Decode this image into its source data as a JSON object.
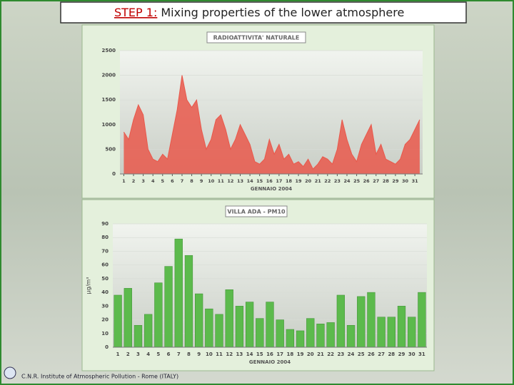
{
  "title_step": "STEP 1:",
  "title": "Mixing properties of the lower atmosphere",
  "footer": "C.N.R. Institute of Atmospheric Pollution - Rome (ITALY)",
  "chart_data": [
    {
      "type": "area",
      "title": "RADIOATTIVITA' NATURALE",
      "x_label": "GENNAIO 2004",
      "color": "#e9584b",
      "x": [
        1,
        1.5,
        2,
        2.5,
        3,
        3.5,
        4,
        4.5,
        5,
        5.5,
        6,
        6.5,
        7,
        7.5,
        8,
        8.5,
        9,
        9.5,
        10,
        10.5,
        11,
        11.5,
        12,
        12.5,
        13,
        13.5,
        14,
        14.5,
        15,
        15.5,
        16,
        16.5,
        17,
        17.5,
        18,
        18.5,
        19,
        19.5,
        20,
        20.5,
        21,
        21.5,
        22,
        22.5,
        23,
        23.5,
        24,
        24.5,
        25,
        25.5,
        26,
        26.5,
        27,
        27.5,
        28,
        28.5,
        29,
        29.5,
        30,
        30.5,
        31,
        31.5
      ],
      "values": [
        850,
        700,
        1100,
        1400,
        1200,
        500,
        300,
        250,
        400,
        300,
        800,
        1300,
        2000,
        1500,
        1350,
        1500,
        900,
        500,
        700,
        1100,
        1200,
        900,
        500,
        700,
        1000,
        800,
        600,
        250,
        200,
        300,
        700,
        400,
        600,
        300,
        400,
        200,
        250,
        150,
        300,
        100,
        200,
        350,
        300,
        200,
        500,
        1100,
        700,
        400,
        250,
        600,
        800,
        1000,
        400,
        600,
        300,
        250,
        200,
        300,
        600,
        700,
        900,
        1100
      ],
      "xlim": [
        0.6,
        31.8
      ],
      "xticks": [
        1,
        2,
        3,
        4,
        5,
        6,
        7,
        8,
        9,
        10,
        11,
        12,
        13,
        14,
        15,
        16,
        17,
        18,
        19,
        20,
        21,
        22,
        23,
        24,
        25,
        26,
        27,
        28,
        29,
        30,
        31
      ],
      "ylim": [
        0,
        2500
      ],
      "yticks": [
        0,
        500,
        1000,
        1500,
        2000,
        2500
      ],
      "grid": true
    },
    {
      "type": "bar",
      "title": "VILLA ADA - PM10",
      "x_label": "GENNAIO 2004",
      "y_label": "µg/m³",
      "color": "#5cba4c",
      "categories": [
        "1",
        "2",
        "3",
        "4",
        "5",
        "6",
        "7",
        "8",
        "9",
        "10",
        "11",
        "12",
        "13",
        "14",
        "15",
        "16",
        "17",
        "18",
        "19",
        "20",
        "21",
        "22",
        "23",
        "24",
        "25",
        "26",
        "27",
        "28",
        "29",
        "30",
        "31"
      ],
      "values": [
        38,
        43,
        16,
        24,
        47,
        59,
        79,
        67,
        39,
        28,
        24,
        42,
        30,
        33,
        21,
        33,
        20,
        13,
        12,
        21,
        17,
        18,
        38,
        16,
        37,
        40,
        22,
        22,
        30,
        22,
        40
      ],
      "ylim": [
        0,
        90
      ],
      "yticks": [
        0,
        10,
        20,
        30,
        40,
        50,
        60,
        70,
        80,
        90
      ],
      "grid": true
    }
  ]
}
